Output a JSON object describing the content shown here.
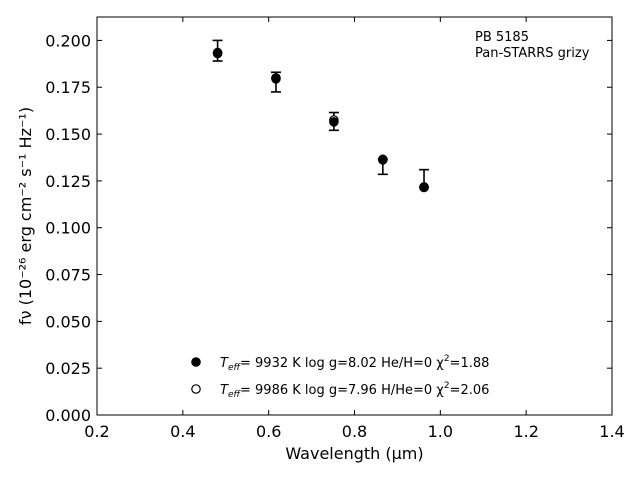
{
  "chart_data": {
    "type": "scatter",
    "xlabel": "Wavelength (μm)",
    "ylabel": "fν (10⁻²⁶ erg cm⁻² s⁻¹ Hz⁻¹)",
    "xlim": [
      0.2,
      1.4
    ],
    "ylim": [
      0.0,
      0.2125
    ],
    "xticks": [
      "0.2",
      "0.4",
      "0.6",
      "0.8",
      "1.0",
      "1.2",
      "1.4"
    ],
    "yticks": [
      "0.000",
      "0.025",
      "0.050",
      "0.075",
      "0.100",
      "0.125",
      "0.150",
      "0.175",
      "0.200"
    ],
    "grid": false,
    "annotation_lines": [
      "PB 5185",
      "Pan-STARRS grizy"
    ],
    "observed": {
      "x": [
        0.481,
        0.617,
        0.752,
        0.866,
        0.962
      ],
      "y": [
        0.1945,
        0.1795,
        0.1565,
        0.1355,
        0.1225
      ],
      "y_err_low": [
        0.0055,
        0.007,
        0.0045,
        0.007,
        0.001
      ],
      "y_err_high": [
        0.0055,
        0.0035,
        0.005,
        0.001,
        0.0085
      ]
    },
    "series": [
      {
        "marker": "filled-circle",
        "label_parts": [
          "T",
          "eff",
          "=  9932 K  log g=8.02  He/H=0  χ",
          "2",
          "=1.88"
        ],
        "x": [
          0.481,
          0.617,
          0.752,
          0.866,
          0.962
        ],
        "y": [
          0.193,
          0.1795,
          0.1565,
          0.1362,
          0.1215
        ]
      },
      {
        "marker": "open-circle",
        "label_parts": [
          "T",
          "eff",
          "=  9986 K  log g=7.96  H/He=0  χ",
          "2",
          "=2.06"
        ],
        "x": [
          0.481,
          0.617,
          0.752,
          0.866,
          0.962
        ],
        "y": [
          0.1935,
          0.18,
          0.1575,
          0.1365,
          0.1218
        ]
      }
    ],
    "legend_position": "lower-center",
    "colors": {
      "marker": "#000000",
      "axes": "#000000",
      "background": "#ffffff"
    }
  }
}
